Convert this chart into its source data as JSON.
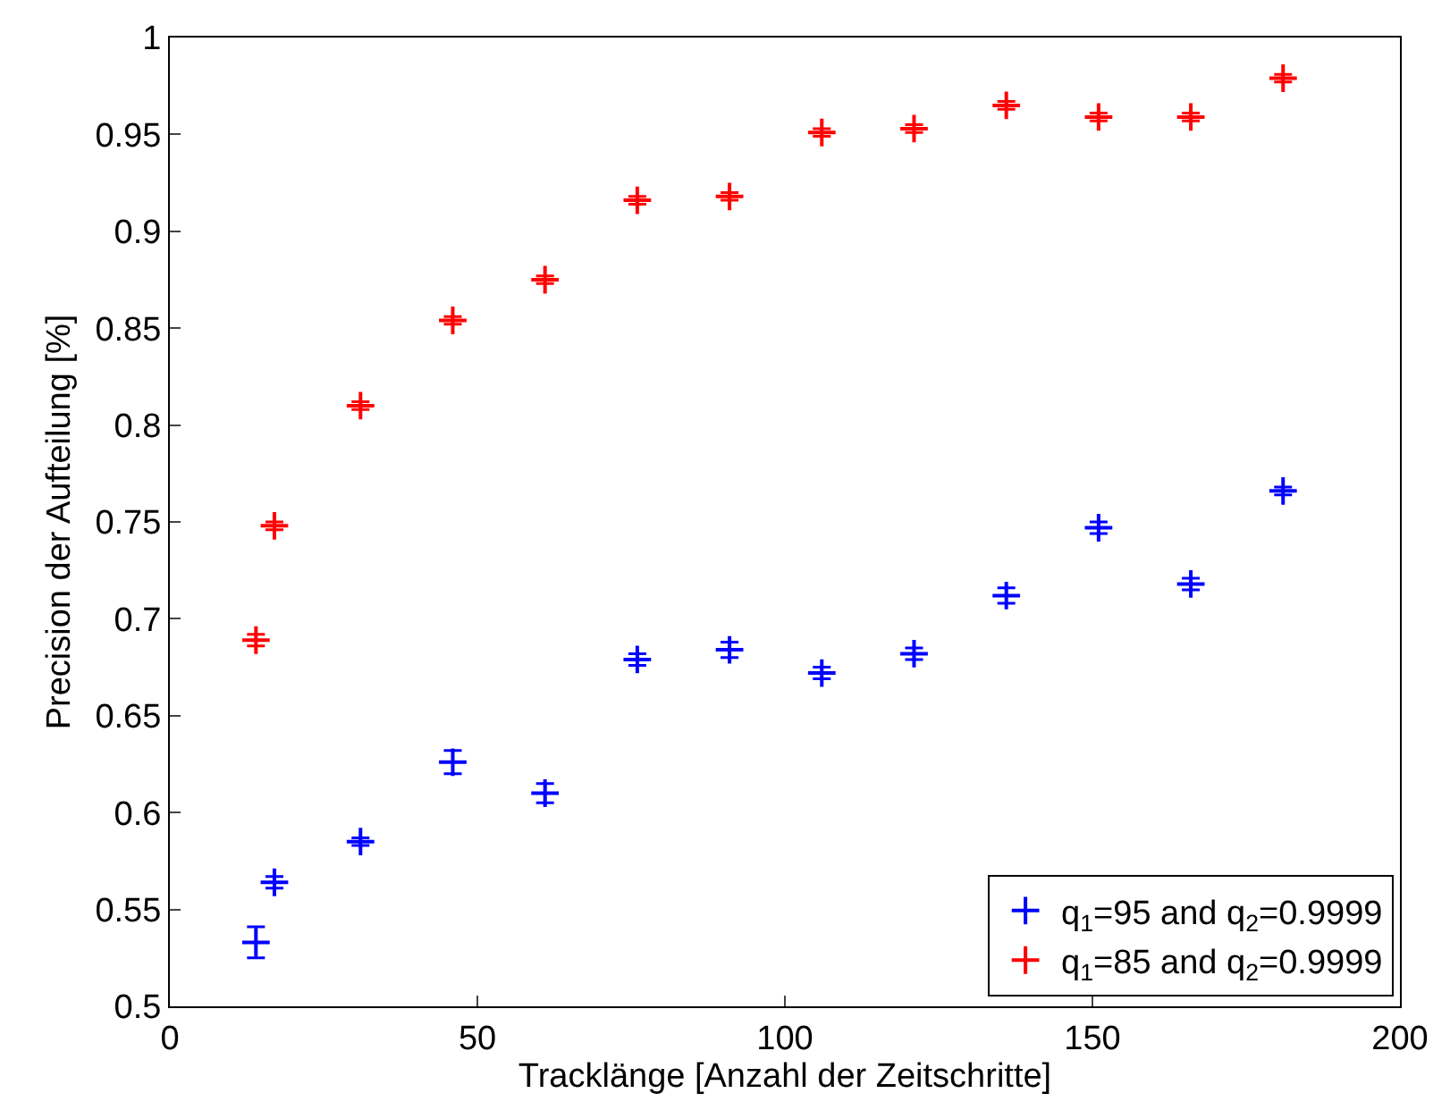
{
  "chart_data": {
    "type": "scatter",
    "xlabel": "Tracklänge [Anzahl der Zeitschritte]",
    "ylabel": "Precision der Aufteilung [%]",
    "x": [
      14,
      17,
      31,
      46,
      61,
      76,
      91,
      106,
      121,
      136,
      151,
      166,
      181
    ],
    "series": [
      {
        "name": "q$_{1}$=95 and q$_{2}$=0.9999",
        "color": "#0000ff",
        "values": [
          0.533,
          0.564,
          0.585,
          0.626,
          0.61,
          0.679,
          0.684,
          0.672,
          0.682,
          0.712,
          0.747,
          0.718,
          0.766
        ],
        "errors": [
          0.008,
          0.003,
          0.002,
          0.006,
          0.005,
          0.003,
          0.004,
          0.003,
          0.003,
          0.004,
          0.003,
          0.003,
          0.002
        ]
      },
      {
        "name": "q$_{1}$=85 and q$_{2}$=0.9999",
        "color": "#ff0000",
        "values": [
          0.689,
          0.748,
          0.81,
          0.854,
          0.875,
          0.916,
          0.918,
          0.951,
          0.953,
          0.965,
          0.959,
          0.959,
          0.979
        ],
        "errors": [
          0.003,
          0.002,
          0.002,
          0.002,
          0.002,
          0.002,
          0.002,
          0.002,
          0.002,
          0.002,
          0.002,
          0.002,
          0.002
        ]
      }
    ],
    "xlim": [
      0,
      200
    ],
    "xticks": [
      0,
      50,
      100,
      150,
      200
    ],
    "ylim": [
      0.5,
      1
    ],
    "yticks": [
      0.5,
      0.55,
      0.6,
      0.65,
      0.7,
      0.75,
      0.8,
      0.85,
      0.9,
      0.95,
      1
    ],
    "marker": "cross",
    "legend": "bottom right"
  }
}
